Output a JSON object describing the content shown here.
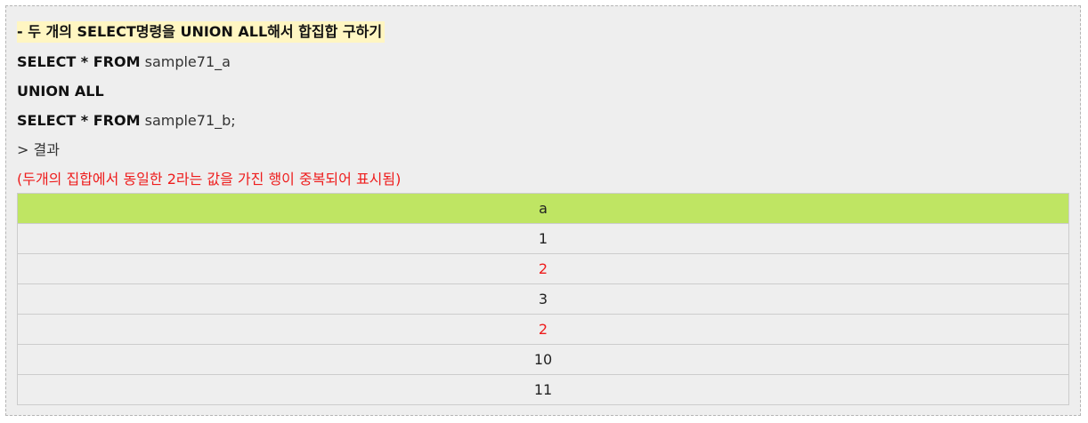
{
  "heading": "- 두 개의 SELECT명령을 UNION ALL해서 합집합 구하기",
  "sql": {
    "line1_kw": "SELECT * FROM",
    "line1_table": " sample71_a",
    "line2_kw": "UNION ALL",
    "line3_kw": "SELECT * FROM",
    "line3_table": " sample71_b;"
  },
  "result_label": "> 결과",
  "note": "(두개의 집합에서 동일한 2라는 값을 가진 행이 중복되어 표시됨)",
  "table": {
    "header": "a",
    "rows": [
      "1",
      "2",
      "3",
      "2",
      "10",
      "11"
    ]
  },
  "colors": {
    "highlight": "#fff6c2",
    "header_bg": "#bfe563",
    "duplicate": "#ee1c1c"
  }
}
